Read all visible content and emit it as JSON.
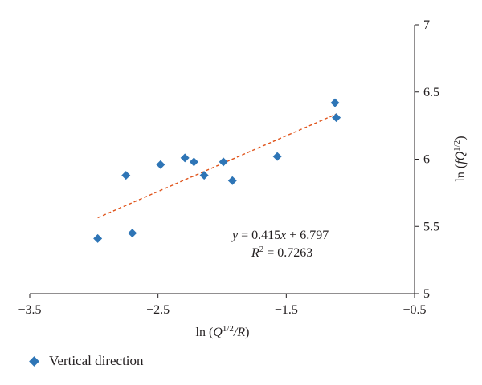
{
  "chart_data": {
    "type": "scatter",
    "xlabel": {
      "prefix": "ln (",
      "var": "Q",
      "sup": "1/2",
      "tail": "/R",
      "close": ")"
    },
    "ylabel": {
      "prefix": "ln (",
      "var": "fQ",
      "sup": "1/2",
      "close": ")"
    },
    "xlim": [
      -3.5,
      -0.5
    ],
    "ylim": [
      5,
      7
    ],
    "xticks": [
      -3.5,
      -2.5,
      -1.5,
      -0.5
    ],
    "xtick_labels": [
      "−3.5",
      "−2.5",
      "−1.5",
      "−0.5"
    ],
    "yticks": [
      5,
      5.5,
      6,
      6.5,
      7
    ],
    "ytick_labels": [
      "5",
      "5.5",
      "6",
      "6.5",
      "7"
    ],
    "grid": false,
    "series": [
      {
        "name": "Vertical direction",
        "color": "#2e75b6",
        "marker": "diamond",
        "points": [
          {
            "x": -2.97,
            "y": 5.41
          },
          {
            "x": -2.75,
            "y": 5.88
          },
          {
            "x": -2.7,
            "y": 5.45
          },
          {
            "x": -2.48,
            "y": 5.96
          },
          {
            "x": -2.29,
            "y": 6.01
          },
          {
            "x": -2.22,
            "y": 5.98
          },
          {
            "x": -2.14,
            "y": 5.88
          },
          {
            "x": -1.99,
            "y": 5.98
          },
          {
            "x": -1.92,
            "y": 5.84
          },
          {
            "x": -1.57,
            "y": 6.02
          },
          {
            "x": -1.12,
            "y": 6.42
          },
          {
            "x": -1.11,
            "y": 6.31
          }
        ]
      }
    ],
    "trendline": {
      "color": "#e0541b",
      "style": "dashed",
      "slope": 0.415,
      "intercept": 6.797,
      "x_range": [
        -2.97,
        -1.11
      ],
      "equation": {
        "y": "y",
        "mid": " = 0.415",
        "x": "x",
        "tail": " + 6.797"
      },
      "r2": {
        "r": "R",
        "sup": "2",
        "tail": " = 0.7263"
      }
    },
    "legend_position": "bottom-left"
  }
}
